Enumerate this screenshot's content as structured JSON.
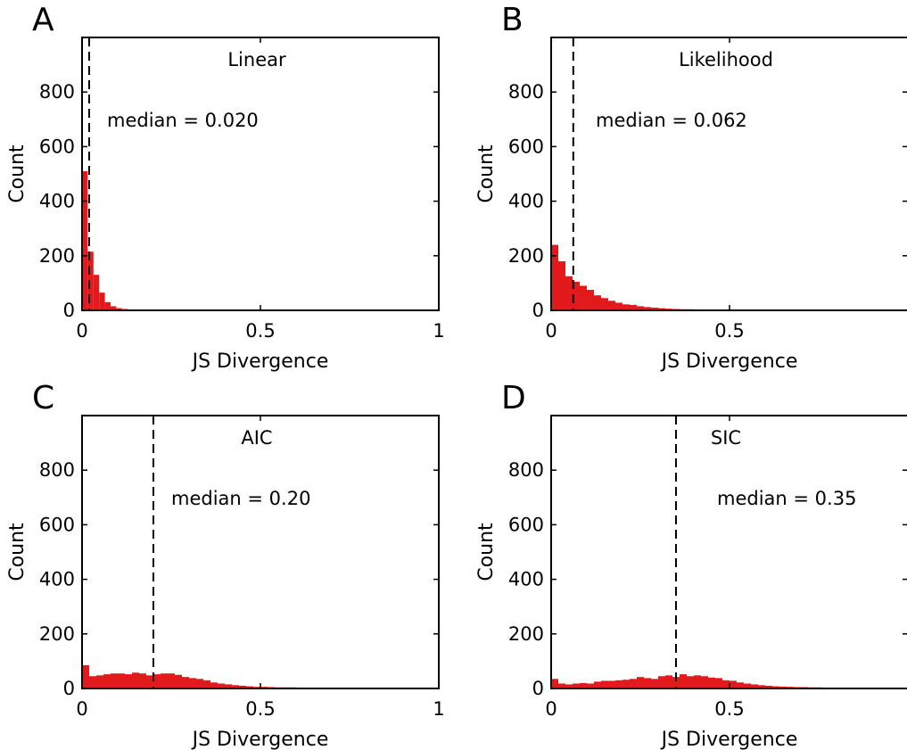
{
  "chart_data": [
    {
      "type": "bar",
      "panel": "A",
      "title": "Linear",
      "xlabel": "JS Divergence",
      "ylabel": "Count",
      "xlim": [
        0,
        1
      ],
      "ylim": [
        0,
        1000
      ],
      "xticks": [
        0,
        0.5,
        1
      ],
      "xtick_labels": [
        "0",
        "0.5",
        "1"
      ],
      "yticks": [
        0,
        200,
        400,
        600,
        800
      ],
      "ytick_labels": [
        "0",
        "200",
        "400",
        "600",
        "800"
      ],
      "median": 0.02,
      "annotation": "median = 0.020",
      "bin_width": 0.016,
      "values": [
        510,
        215,
        130,
        65,
        30,
        15,
        8,
        5,
        3,
        2,
        2,
        1,
        1,
        1,
        1,
        1,
        0,
        0,
        0,
        0
      ],
      "bar_color": "#e31a1c",
      "grid": false
    },
    {
      "type": "bar",
      "panel": "B",
      "title": "Likelihood",
      "xlabel": "JS Divergence",
      "ylabel": "Count",
      "xlim": [
        0,
        1
      ],
      "ylim": [
        0,
        1000
      ],
      "xticks": [
        0,
        0.5
      ],
      "xtick_labels": [
        "0",
        "0.5"
      ],
      "yticks": [
        0,
        200,
        400,
        600,
        800
      ],
      "ytick_labels": [
        "0",
        "200",
        "400",
        "600",
        "800"
      ],
      "median": 0.062,
      "annotation": "median = 0.062",
      "bin_width": 0.02,
      "values": [
        240,
        180,
        125,
        105,
        90,
        75,
        55,
        45,
        35,
        28,
        22,
        20,
        15,
        12,
        10,
        8,
        6,
        5,
        4,
        4,
        3,
        3,
        2,
        2,
        2,
        2,
        1,
        1,
        1,
        1,
        1,
        1,
        1,
        1,
        1,
        1,
        0,
        0,
        0,
        0
      ],
      "bar_color": "#e31a1c",
      "grid": false
    },
    {
      "type": "bar",
      "panel": "C",
      "title": "AIC",
      "xlabel": "JS Divergence",
      "ylabel": "Count",
      "xlim": [
        0,
        1
      ],
      "ylim": [
        0,
        1000
      ],
      "xticks": [
        0,
        0.5,
        1
      ],
      "xtick_labels": [
        "0",
        "0.5",
        "1"
      ],
      "yticks": [
        0,
        200,
        400,
        600,
        800
      ],
      "ytick_labels": [
        "0",
        "200",
        "400",
        "600",
        "800"
      ],
      "median": 0.2,
      "annotation": "median = 0.20",
      "bin_width": 0.02,
      "values": [
        85,
        45,
        48,
        52,
        55,
        55,
        52,
        58,
        55,
        48,
        52,
        55,
        55,
        50,
        42,
        38,
        35,
        30,
        22,
        18,
        15,
        12,
        10,
        8,
        6,
        6,
        5,
        4,
        4,
        4,
        3,
        3,
        3,
        3,
        2,
        2,
        2,
        2,
        2,
        2,
        2,
        2,
        2,
        2,
        2,
        2,
        2,
        2,
        2,
        1
      ],
      "bar_color": "#e31a1c",
      "grid": false
    },
    {
      "type": "bar",
      "panel": "D",
      "title": "SIC",
      "xlabel": "JS Divergence",
      "ylabel": "Count",
      "xlim": [
        0,
        1
      ],
      "ylim": [
        0,
        1000
      ],
      "xticks": [
        0,
        0.5
      ],
      "xtick_labels": [
        "0",
        "0.5"
      ],
      "yticks": [
        0,
        200,
        400,
        600,
        800
      ],
      "ytick_labels": [
        "0",
        "200",
        "400",
        "600",
        "800"
      ],
      "median": 0.35,
      "annotation": "median = 0.35",
      "bin_width": 0.02,
      "values": [
        35,
        18,
        15,
        18,
        20,
        18,
        25,
        28,
        28,
        30,
        32,
        35,
        42,
        38,
        35,
        45,
        48,
        42,
        52,
        45,
        48,
        45,
        40,
        38,
        30,
        28,
        22,
        18,
        15,
        12,
        10,
        8,
        7,
        6,
        5,
        5,
        4,
        4,
        3,
        3,
        3,
        3,
        2,
        2,
        2,
        2,
        2,
        2,
        2,
        1
      ],
      "bar_color": "#e31a1c",
      "grid": false
    }
  ]
}
